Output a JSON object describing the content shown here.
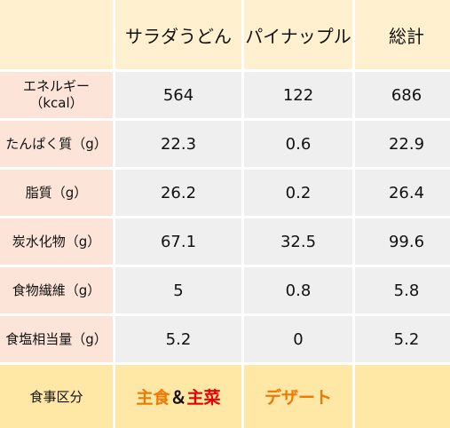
{
  "header": {
    "corner": "",
    "col1": "サラダうどん",
    "col2": "パイナップル",
    "col3": "総計"
  },
  "rows": [
    {
      "label": "エネルギー\n（kcal）",
      "v1": "564",
      "v2": "122",
      "v3": "686"
    },
    {
      "label": "たんぱく質（g）",
      "v1": "22.3",
      "v2": "0.6",
      "v3": "22.9"
    },
    {
      "label": "脂質（g）",
      "v1": "26.2",
      "v2": "0.2",
      "v3": "26.4"
    },
    {
      "label": "炭水化物（g）",
      "v1": "67.1",
      "v2": "32.5",
      "v3": "99.6"
    },
    {
      "label": "食物繊維（g）",
      "v1": "5",
      "v2": "0.8",
      "v3": "5.8"
    },
    {
      "label": "食塩相当量（g）",
      "v1": "5.2",
      "v2": "0",
      "v3": "5.2"
    }
  ],
  "footer": {
    "label": "食事区分",
    "col1_part1": "主食",
    "col1_amp": "＆",
    "col1_part2": "主菜",
    "col2": "デザート",
    "col3": ""
  },
  "colors": {
    "header_bg": "#fff1cf",
    "label_bg": "#fce4d8",
    "value_bg": "#efefef",
    "footer_bg": "#ffe7a6",
    "orange": "#f07800",
    "red": "#ee0000"
  }
}
